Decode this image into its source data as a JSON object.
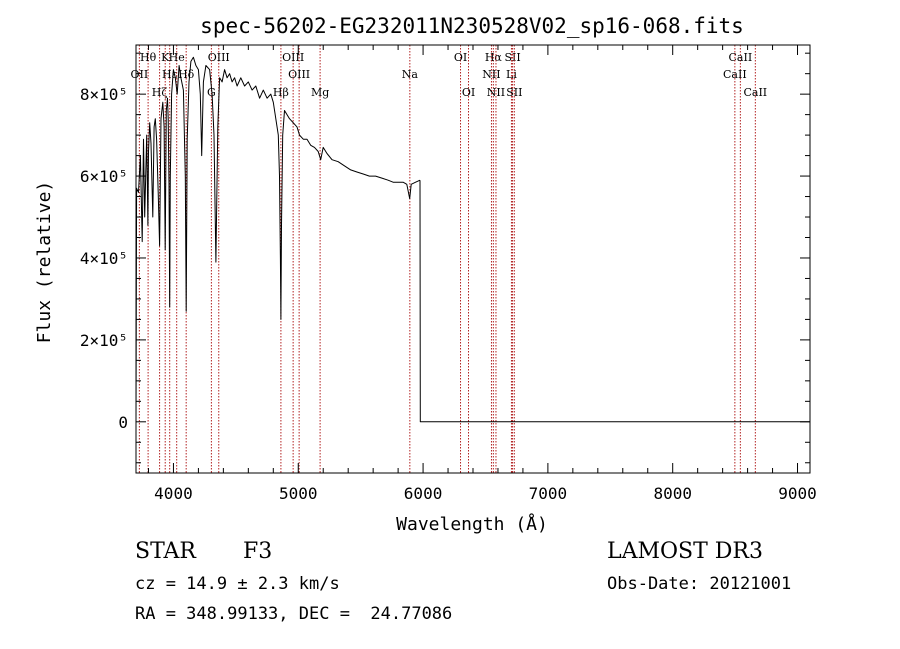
{
  "header": {
    "title": "spec-56202-EG232011N230528V02_sp16-068.fits"
  },
  "info": {
    "class": "STAR",
    "subclass": "F3",
    "survey": "LAMOST DR3",
    "cz": "cz = 14.9 ± 2.3 km/s",
    "obs_date": "Obs-Date: 20121001",
    "coords": "RA = 348.99133, DEC =  24.77086"
  },
  "chart_data": {
    "type": "line",
    "title": "spec-56202-EG232011N230528V02_sp16-068.fits",
    "xlabel": "Wavelength (Å)",
    "ylabel": "Flux (relative)",
    "xlim": [
      3700,
      9100
    ],
    "ylim": [
      -125000,
      920000
    ],
    "x_ticks": [
      4000,
      5000,
      6000,
      7000,
      8000,
      9000
    ],
    "y_ticks": [
      {
        "value": 0,
        "label": "0"
      },
      {
        "value": 200000,
        "label": "2×10⁵"
      },
      {
        "value": 400000,
        "label": "4×10⁵"
      },
      {
        "value": 600000,
        "label": "6×10⁵"
      },
      {
        "value": 800000,
        "label": "8×10⁵"
      }
    ],
    "grid": false,
    "series": [
      {
        "color": "#000000",
        "segments": [
          [
            [
              3700,
              0
            ],
            [
              3705,
              570000
            ],
            [
              3720,
              560000
            ],
            [
              3735,
              650000
            ],
            [
              3750,
              440000
            ],
            [
              3760,
              690000
            ],
            [
              3770,
              500000
            ],
            [
              3778,
              600000
            ],
            [
              3786,
              700000
            ],
            [
              3795,
              480000
            ],
            [
              3800,
              660000
            ],
            [
              3810,
              730000
            ],
            [
              3820,
              680000
            ],
            [
              3835,
              500000
            ],
            [
              3845,
              720000
            ],
            [
              3855,
              740000
            ],
            [
              3865,
              690000
            ],
            [
              3878,
              560000
            ],
            [
              3889,
              430000
            ],
            [
              3900,
              740000
            ],
            [
              3915,
              780000
            ],
            [
              3925,
              720000
            ],
            [
              3934,
              420000
            ],
            [
              3943,
              760000
            ],
            [
              3952,
              790000
            ],
            [
              3958,
              740000
            ],
            [
              3964,
              580000
            ],
            [
              3970,
              280000
            ],
            [
              3975,
              600000
            ],
            [
              3985,
              800000
            ],
            [
              4000,
              860000
            ],
            [
              4015,
              840000
            ],
            [
              4030,
              800000
            ],
            [
              4045,
              870000
            ],
            [
              4060,
              840000
            ],
            [
              4080,
              810000
            ],
            [
              4095,
              600000
            ],
            [
              4102,
              270000
            ],
            [
              4110,
              690000
            ],
            [
              4125,
              830000
            ],
            [
              4140,
              880000
            ],
            [
              4160,
              890000
            ],
            [
              4180,
              870000
            ],
            [
              4200,
              860000
            ],
            [
              4215,
              800000
            ],
            [
              4226,
              650000
            ],
            [
              4240,
              830000
            ],
            [
              4260,
              870000
            ],
            [
              4290,
              860000
            ],
            [
              4310,
              800000
            ],
            [
              4325,
              700000
            ],
            [
              4340,
              390000
            ],
            [
              4355,
              720000
            ],
            [
              4370,
              840000
            ],
            [
              4390,
              830000
            ],
            [
              4410,
              860000
            ],
            [
              4430,
              840000
            ],
            [
              4450,
              850000
            ],
            [
              4470,
              830000
            ],
            [
              4490,
              840000
            ],
            [
              4510,
              820000
            ],
            [
              4540,
              840000
            ],
            [
              4570,
              820000
            ],
            [
              4600,
              830000
            ],
            [
              4630,
              810000
            ],
            [
              4660,
              820000
            ],
            [
              4690,
              790000
            ],
            [
              4720,
              810000
            ],
            [
              4750,
              790000
            ],
            [
              4780,
              800000
            ],
            [
              4800,
              780000
            ],
            [
              4820,
              740000
            ],
            [
              4840,
              700000
            ],
            [
              4850,
              600000
            ],
            [
              4857,
              400000
            ],
            [
              4861,
              250000
            ],
            [
              4866,
              480000
            ],
            [
              4875,
              700000
            ],
            [
              4890,
              760000
            ],
            [
              4910,
              750000
            ],
            [
              4930,
              740000
            ],
            [
              4960,
              730000
            ],
            [
              4990,
              720000
            ],
            [
              5010,
              700000
            ],
            [
              5040,
              690000
            ],
            [
              5070,
              690000
            ],
            [
              5100,
              675000
            ],
            [
              5130,
              670000
            ],
            [
              5160,
              660000
            ],
            [
              5180,
              640000
            ],
            [
              5200,
              670000
            ],
            [
              5230,
              655000
            ],
            [
              5270,
              640000
            ],
            [
              5320,
              635000
            ],
            [
              5370,
              625000
            ],
            [
              5420,
              615000
            ],
            [
              5470,
              610000
            ],
            [
              5520,
              605000
            ],
            [
              5570,
              600000
            ],
            [
              5620,
              600000
            ],
            [
              5670,
              595000
            ],
            [
              5720,
              590000
            ],
            [
              5760,
              585000
            ],
            [
              5800,
              585000
            ],
            [
              5840,
              585000
            ],
            [
              5870,
              580000
            ],
            [
              5893,
              545000
            ],
            [
              5905,
              580000
            ],
            [
              5940,
              585000
            ],
            [
              5975,
              590000
            ]
          ],
          [
            [
              5975,
              590000
            ],
            [
              5978,
              0
            ],
            [
              9100,
              0
            ]
          ]
        ]
      }
    ],
    "lines": [
      {
        "label": "Hθ",
        "wavelength": 3797,
        "pos": "top"
      },
      {
        "label": "OII",
        "wavelength": 3727,
        "pos": "mid"
      },
      {
        "label": "Hζ",
        "wavelength": 3889,
        "pos": "low"
      },
      {
        "label": "K",
        "wavelength": 3934,
        "pos": "top"
      },
      {
        "label": "Hε",
        "wavelength": 3970,
        "pos": "mid"
      },
      {
        "label": "He",
        "wavelength": 4026,
        "pos": "top"
      },
      {
        "label": "Hδ",
        "wavelength": 4102,
        "pos": "mid"
      },
      {
        "label": "OIII",
        "wavelength": 4363,
        "pos": "top"
      },
      {
        "label": "G",
        "wavelength": 4304,
        "pos": "low"
      },
      {
        "label": "Hβ",
        "wavelength": 4861,
        "pos": "low"
      },
      {
        "label": "OIII",
        "wavelength": 4959,
        "pos": "top"
      },
      {
        "label": "OIII",
        "wavelength": 5007,
        "pos": "mid"
      },
      {
        "label": "Mg",
        "wavelength": 5175,
        "pos": "low"
      },
      {
        "label": "Na",
        "wavelength": 5894,
        "pos": "mid"
      },
      {
        "label": "OI",
        "wavelength": 6300,
        "pos": "top"
      },
      {
        "label": "OI",
        "wavelength": 6364,
        "pos": "low"
      },
      {
        "label": "Hα",
        "wavelength": 6563,
        "pos": "top"
      },
      {
        "label": "NII",
        "wavelength": 6548,
        "pos": "mid"
      },
      {
        "label": "NII",
        "wavelength": 6584,
        "pos": "low"
      },
      {
        "label": "SII",
        "wavelength": 6717,
        "pos": "top"
      },
      {
        "label": "Li",
        "wavelength": 6708,
        "pos": "mid"
      },
      {
        "label": "SII",
        "wavelength": 6731,
        "pos": "low"
      },
      {
        "label": "CaII",
        "wavelength": 8542,
        "pos": "top"
      },
      {
        "label": "CaII",
        "wavelength": 8498,
        "pos": "mid"
      },
      {
        "label": "CaII",
        "wavelength": 8662,
        "pos": "low"
      }
    ]
  }
}
